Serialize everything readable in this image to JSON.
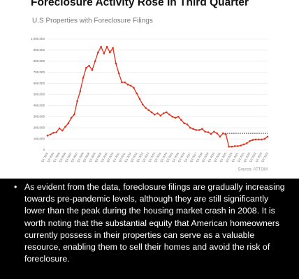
{
  "chart_data": {
    "type": "line",
    "title": "Foreclosure Activity Rose In Third Quarter",
    "subtitle": "U.S Properties with Foreclosure Filings",
    "source": "Source: ATTOM",
    "categories": [
      "Q1 2005",
      null,
      "Q3 2005",
      null,
      "Q1 2006",
      null,
      "Q3 2006",
      null,
      "Q1 2007",
      null,
      "Q3 2007",
      null,
      "Q1 2008",
      null,
      "Q3 2008",
      null,
      "Q1 2009",
      null,
      "Q3 2009",
      null,
      "Q1 2010",
      null,
      "Q3 2010",
      null,
      "Q1 2011",
      null,
      "Q3 2011",
      null,
      "Q1 2012",
      null,
      "Q3 2012",
      null,
      "Q1 2013",
      null,
      "Q3 2013",
      null,
      "Q1 2014",
      null,
      "Q3 2014",
      null,
      "Q1 2015",
      null,
      "Q3 2015",
      null,
      "Q1 2016",
      null,
      "Q3 2016",
      null,
      "Q1 2017",
      null,
      "Q3 2017",
      null,
      "Q1 2018",
      null,
      "Q3 2018",
      null,
      "Q1 2019",
      null,
      "Q3 2019",
      null,
      "Q1 2020",
      null,
      "Q3 2020",
      null,
      "Q1 2021",
      null,
      "Q3 2021",
      null,
      "Q1 2022",
      null,
      "Q3 2022",
      null,
      "Q1 2023",
      null,
      "Q3 2023"
    ],
    "series": [
      {
        "name": "Properties with Foreclosure Filings",
        "color": "#e0301e",
        "values": [
          130000,
          140000,
          155000,
          160000,
          195000,
          175000,
          210000,
          240000,
          290000,
          320000,
          440000,
          530000,
          650000,
          740000,
          760000,
          720000,
          800000,
          880000,
          930000,
          870000,
          930000,
          880000,
          920000,
          780000,
          690000,
          610000,
          610000,
          590000,
          580000,
          560000,
          510000,
          460000,
          410000,
          380000,
          360000,
          340000,
          320000,
          330000,
          310000,
          330000,
          340000,
          320000,
          300000,
          290000,
          300000,
          270000,
          240000,
          230000,
          200000,
          190000,
          180000,
          180000,
          190000,
          165000,
          160000,
          145000,
          165000,
          150000,
          120000,
          150000,
          140000,
          30000,
          30000,
          35000,
          35000,
          40000,
          50000,
          60000,
          80000,
          90000,
          95000,
          95000,
          95000,
          100000,
          120000
        ]
      }
    ],
    "reference_value": 150000,
    "ylim": [
      0,
      1000000
    ],
    "yticks": [
      0,
      {
        "value": 100000,
        "label": "100,000"
      },
      {
        "value": 200000,
        "label": "200,000"
      },
      {
        "value": 300000,
        "label": "300,000"
      },
      {
        "value": 400000,
        "label": "400,000"
      },
      {
        "value": 500000,
        "label": "500,000"
      },
      {
        "value": 600000,
        "label": "600,000"
      },
      {
        "value": 700000,
        "label": "700,000"
      },
      {
        "value": 800000,
        "label": "800,000"
      },
      {
        "value": 900000,
        "label": "900,000"
      },
      {
        "value": 1000000,
        "label": "1,000,000"
      }
    ],
    "grid": true
  },
  "note": {
    "text": "As evident from the data, foreclosure filings are gradually increasing towards pre-pandemic levels, although they are still significantly lower than the peak during the housing market crash in 2008. It is worth noting that the substantial equity that American homeowners currently possess in their properties can serve as a valuable resource, enabling them to sell their homes and avoid the risk of foreclosure."
  }
}
